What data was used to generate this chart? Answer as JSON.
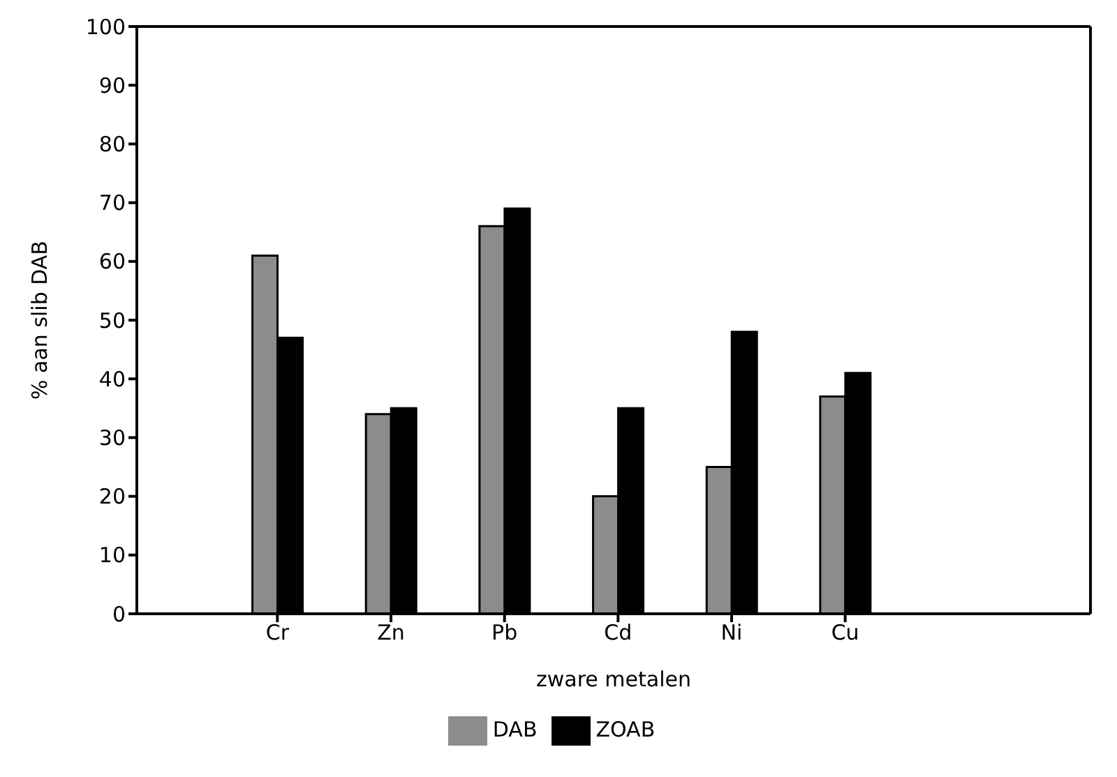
{
  "chart_data": {
    "type": "bar",
    "xlabel": "zware metalen",
    "ylabel": "% aan slib DAB",
    "categories": [
      "Cr",
      "Zn",
      "Pb",
      "Cd",
      "Ni",
      "Cu"
    ],
    "series": [
      {
        "name": "DAB",
        "color": "#8c8c8c",
        "values": [
          61,
          34,
          66,
          20,
          25,
          37
        ]
      },
      {
        "name": "ZOAB",
        "color": "#000000",
        "values": [
          47,
          35,
          69,
          35,
          48,
          41
        ]
      }
    ],
    "ylim": [
      0,
      100
    ],
    "yticks": [
      0,
      10,
      20,
      30,
      40,
      50,
      60,
      70,
      80,
      90,
      100
    ],
    "grid": false,
    "legend": "bottom"
  }
}
